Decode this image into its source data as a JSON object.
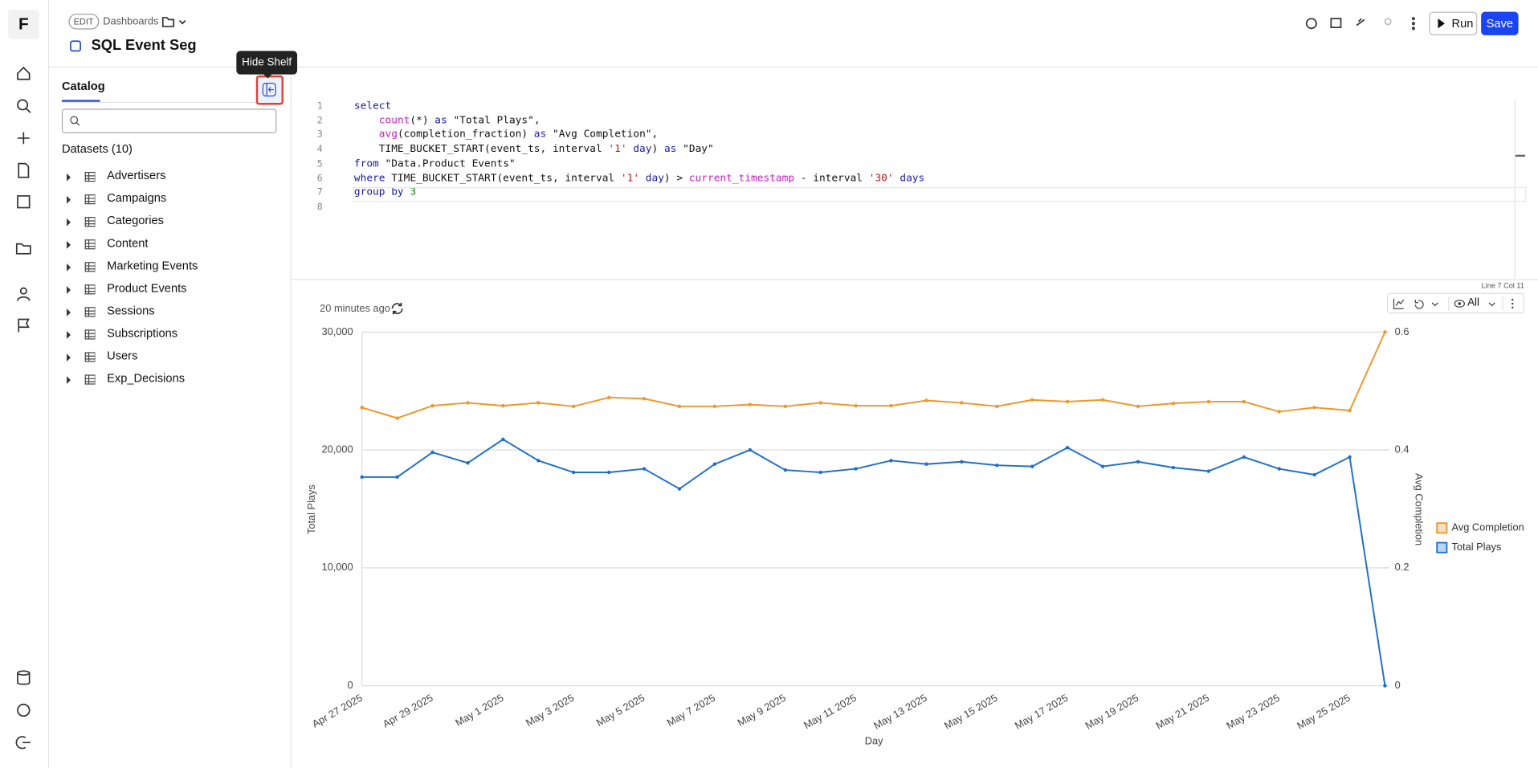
{
  "app_logo": "F",
  "header": {
    "badge": "EDIT",
    "breadcrumb": "Dashboards",
    "title": "SQL Event Seg",
    "run": "Run",
    "save": "Save"
  },
  "tooltip": "Hide Shelf",
  "catalog": {
    "tab": "Catalog",
    "datasets_heading": "Datasets (10)",
    "datasets": [
      "Advertisers",
      "Campaigns",
      "Categories",
      "Content",
      "Marketing Events",
      "Product Events",
      "Sessions",
      "Subscriptions",
      "Users",
      "Exp_Decisions"
    ]
  },
  "editor": {
    "line_numbers": [
      1,
      2,
      3,
      4,
      5,
      6,
      7,
      8
    ],
    "lines": [
      [
        {
          "text": "select",
          "color": "#1a1aa6"
        }
      ],
      [
        {
          "text": "    ",
          "color": "#111"
        },
        {
          "text": "count",
          "color": "#c41ec4"
        },
        {
          "text": "(*) ",
          "color": "#111"
        },
        {
          "text": "as",
          "color": "#1a1aa6"
        },
        {
          "text": " \"Total Plays\",",
          "color": "#111"
        }
      ],
      [
        {
          "text": "    ",
          "color": "#111"
        },
        {
          "text": "avg",
          "color": "#c41ec4"
        },
        {
          "text": "(completion_fraction) ",
          "color": "#111"
        },
        {
          "text": "as",
          "color": "#1a1aa6"
        },
        {
          "text": " \"Avg Completion\",",
          "color": "#111"
        }
      ],
      [
        {
          "text": "    TIME_BUCKET_START(event_ts, interval ",
          "color": "#111"
        },
        {
          "text": "'1'",
          "color": "#c41a1a"
        },
        {
          "text": " ",
          "color": "#111"
        },
        {
          "text": "day",
          "color": "#1a1aa6"
        },
        {
          "text": ") ",
          "color": "#111"
        },
        {
          "text": "as",
          "color": "#1a1aa6"
        },
        {
          "text": " \"Day\"",
          "color": "#111"
        }
      ],
      [
        {
          "text": "from",
          "color": "#1a1aa6"
        },
        {
          "text": " \"Data.Product Events\"",
          "color": "#111"
        }
      ],
      [
        {
          "text": "where",
          "color": "#1a1aa6"
        },
        {
          "text": " TIME_BUCKET_START(event_ts, interval ",
          "color": "#111"
        },
        {
          "text": "'1'",
          "color": "#c41a1a"
        },
        {
          "text": " ",
          "color": "#111"
        },
        {
          "text": "day",
          "color": "#1a1aa6"
        },
        {
          "text": ") > ",
          "color": "#111"
        },
        {
          "text": "current_timestamp",
          "color": "#c41ec4"
        },
        {
          "text": " - interval ",
          "color": "#111"
        },
        {
          "text": "'30'",
          "color": "#c41a1a"
        },
        {
          "text": " ",
          "color": "#111"
        },
        {
          "text": "days",
          "color": "#1a1aa6"
        }
      ],
      [
        {
          "text": "group by",
          "color": "#1a1aa6"
        },
        {
          "text": " ",
          "color": "#111"
        },
        {
          "text": "3",
          "color": "#118811"
        }
      ]
    ],
    "status": "Line 7 Col 11"
  },
  "results": {
    "updated": "20 minutes ago",
    "view_filter": "All"
  },
  "chart_data": {
    "type": "line",
    "x_label": "Day",
    "y_label": "Total Plays",
    "y2_label": "Avg Completion",
    "categories": [
      "Apr 27 2025",
      null,
      "Apr 29 2025",
      null,
      "May 1 2025",
      null,
      "May 3 2025",
      null,
      "May 5 2025",
      null,
      "May 7 2025",
      null,
      "May 9 2025",
      null,
      "May 11 2025",
      null,
      "May 13 2025",
      null,
      "May 15 2025",
      null,
      "May 17 2025",
      null,
      "May 19 2025",
      null,
      "May 21 2025",
      null,
      "May 23 2025",
      null,
      "May 25 2025",
      null
    ],
    "series": [
      {
        "name": "Avg Completion",
        "color": "#f0962a",
        "axis": "y2",
        "values": [
          0.472,
          0.454,
          0.475,
          0.48,
          0.475,
          0.48,
          0.474,
          0.489,
          0.487,
          0.474,
          0.474,
          0.477,
          0.474,
          0.48,
          0.475,
          0.475,
          0.484,
          0.48,
          0.474,
          0.485,
          0.482,
          0.485,
          0.474,
          0.479,
          0.482,
          0.482,
          0.465,
          0.472,
          0.467,
          0.6
        ]
      },
      {
        "name": "Total Plays",
        "color": "#1f6fc8",
        "values": [
          17700,
          17700,
          19800,
          18900,
          20900,
          19100,
          18100,
          18100,
          18400,
          16700,
          18800,
          20000,
          18300,
          18100,
          18400,
          19100,
          18800,
          19000,
          18700,
          18600,
          20200,
          18600,
          19000,
          18500,
          18200,
          19400,
          18400,
          17900,
          19400,
          0
        ]
      }
    ],
    "ylim": [
      0,
      30000
    ],
    "yticks": [
      0,
      {
        "value": 10000,
        "label": "10,000"
      },
      {
        "value": 20000,
        "label": "20,000"
      },
      {
        "value": 30000,
        "label": "30,000"
      }
    ],
    "y2lim": [
      0,
      0.6
    ],
    "y2ticks": [
      0,
      0.2,
      0.4,
      0.6
    ],
    "grid": true,
    "legend": "right"
  }
}
